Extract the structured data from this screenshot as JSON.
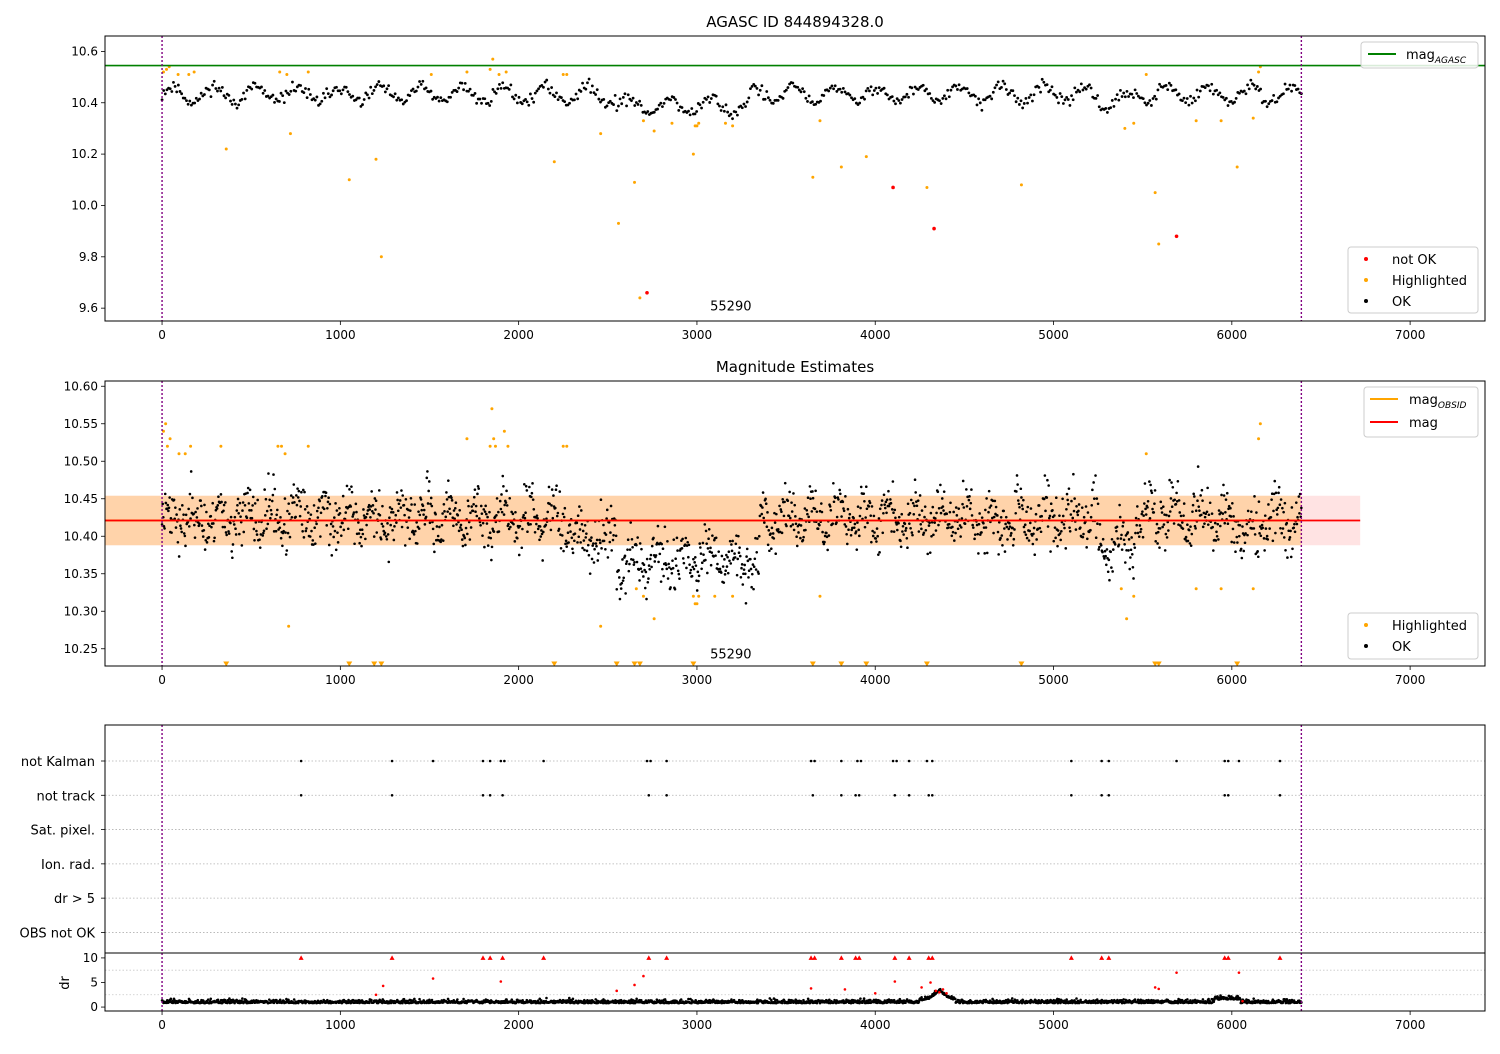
{
  "chart_data": [
    {
      "id": "agasc",
      "type": "scatter",
      "title": "AGASC ID 844894328.0",
      "xlim": [
        -320,
        7420
      ],
      "ylim": [
        9.55,
        10.66
      ],
      "xticks": [
        0,
        1000,
        2000,
        3000,
        4000,
        5000,
        6000,
        7000
      ],
      "yticks": [
        9.6,
        9.8,
        10.0,
        10.2,
        10.4,
        10.6
      ],
      "ytick_decimals": 1,
      "vlines": [
        0,
        6390
      ],
      "annotation": {
        "text": "55290",
        "x": 3190,
        "y": 9.61
      },
      "hlines": [
        {
          "name": "mag_agasc",
          "y": 10.545,
          "color": "#008000"
        }
      ],
      "ok_series": {
        "name": "OK",
        "color": "#000000",
        "n": 700,
        "x_range": [
          0,
          6390
        ],
        "seed": 11
      },
      "highlighted": {
        "name": "Highlighted",
        "color": "#FFA500",
        "points": [
          [
            8,
            10.52
          ],
          [
            25,
            10.53
          ],
          [
            40,
            10.54
          ],
          [
            90,
            10.51
          ],
          [
            150,
            10.51
          ],
          [
            180,
            10.52
          ],
          [
            360,
            10.22
          ],
          [
            660,
            10.52
          ],
          [
            700,
            10.51
          ],
          [
            720,
            10.28
          ],
          [
            820,
            10.52
          ],
          [
            1050,
            10.1
          ],
          [
            1200,
            10.18
          ],
          [
            1230,
            9.8
          ],
          [
            1510,
            10.51
          ],
          [
            1710,
            10.52
          ],
          [
            1840,
            10.53
          ],
          [
            1855,
            10.57
          ],
          [
            1890,
            10.51
          ],
          [
            1930,
            10.52
          ],
          [
            2200,
            10.17
          ],
          [
            2250,
            10.51
          ],
          [
            2270,
            10.51
          ],
          [
            2460,
            10.28
          ],
          [
            2560,
            9.93
          ],
          [
            2650,
            10.09
          ],
          [
            2680,
            9.64
          ],
          [
            2700,
            10.33
          ],
          [
            2760,
            10.29
          ],
          [
            2860,
            10.32
          ],
          [
            2980,
            10.2
          ],
          [
            2990,
            10.31
          ],
          [
            3000,
            10.31
          ],
          [
            3010,
            10.32
          ],
          [
            3160,
            10.32
          ],
          [
            3200,
            10.31
          ],
          [
            3650,
            10.11
          ],
          [
            3690,
            10.33
          ],
          [
            3810,
            10.15
          ],
          [
            3950,
            10.19
          ],
          [
            4290,
            10.07
          ],
          [
            4820,
            10.08
          ],
          [
            5400,
            10.3
          ],
          [
            5450,
            10.32
          ],
          [
            5520,
            10.51
          ],
          [
            5570,
            10.05
          ],
          [
            5590,
            9.85
          ],
          [
            5800,
            10.33
          ],
          [
            5940,
            10.33
          ],
          [
            6030,
            10.15
          ],
          [
            6120,
            10.34
          ],
          [
            6150,
            10.52
          ],
          [
            6160,
            10.54
          ]
        ]
      },
      "not_ok": {
        "name": "not OK",
        "color": "#FF0000",
        "points": [
          [
            2720,
            9.66
          ],
          [
            4100,
            10.07
          ],
          [
            4330,
            9.91
          ],
          [
            5690,
            9.88
          ]
        ]
      },
      "legend_top": [
        {
          "label": "mag",
          "sub": "AGASC",
          "color": "#008000"
        }
      ],
      "legend_bottom": [
        {
          "label": "not OK",
          "color": "#FF0000"
        },
        {
          "label": "Highlighted",
          "color": "#FFA500"
        },
        {
          "label": "OK",
          "color": "#000000"
        }
      ]
    },
    {
      "id": "estimates",
      "type": "scatter",
      "title": "Magnitude Estimates",
      "xlim": [
        -320,
        7420
      ],
      "ylim": [
        10.227,
        10.607
      ],
      "xticks": [
        0,
        1000,
        2000,
        3000,
        4000,
        5000,
        6000,
        7000
      ],
      "yticks": [
        10.25,
        10.3,
        10.35,
        10.4,
        10.45,
        10.5,
        10.55,
        10.6
      ],
      "ytick_decimals": 2,
      "vlines": [
        0,
        6390
      ],
      "annotation": {
        "text": "55290",
        "x": 3190,
        "y": 10.244
      },
      "band": {
        "x": [
          -320,
          6720
        ],
        "y": [
          10.388,
          10.454
        ],
        "color": "#FF9999"
      },
      "band_obs": {
        "x": [
          -320,
          6390
        ],
        "y": [
          10.388,
          10.454
        ],
        "color": "#FFA500"
      },
      "mag_line": {
        "name": "mag",
        "y": 10.421,
        "x": [
          -320,
          6720
        ],
        "color": "#FF0000"
      },
      "mag_obs_line": {
        "name": "mag_obsid",
        "y": 10.421,
        "x": [
          -320,
          6390
        ],
        "color": "#FFA500"
      },
      "ok_series": {
        "name": "OK",
        "color": "#000000",
        "n": 1800,
        "x_range": [
          0,
          6390
        ],
        "seed": 23
      },
      "highlighted": {
        "name": "Highlighted",
        "color": "#FFA500",
        "points": [
          [
            8,
            10.54
          ],
          [
            20,
            10.55
          ],
          [
            30,
            10.52
          ],
          [
            45,
            10.53
          ],
          [
            95,
            10.51
          ],
          [
            130,
            10.51
          ],
          [
            160,
            10.52
          ],
          [
            330,
            10.52
          ],
          [
            650,
            10.52
          ],
          [
            670,
            10.52
          ],
          [
            690,
            10.51
          ],
          [
            710,
            10.28
          ],
          [
            820,
            10.52
          ],
          [
            1710,
            10.53
          ],
          [
            1840,
            10.52
          ],
          [
            1850,
            10.57
          ],
          [
            1860,
            10.53
          ],
          [
            1870,
            10.52
          ],
          [
            1920,
            10.54
          ],
          [
            1940,
            10.52
          ],
          [
            2250,
            10.52
          ],
          [
            2270,
            10.52
          ],
          [
            2460,
            10.28
          ],
          [
            2660,
            10.33
          ],
          [
            2700,
            10.32
          ],
          [
            2760,
            10.29
          ],
          [
            2980,
            10.32
          ],
          [
            2990,
            10.31
          ],
          [
            3000,
            10.31
          ],
          [
            3010,
            10.32
          ],
          [
            3100,
            10.32
          ],
          [
            3200,
            10.32
          ],
          [
            3690,
            10.32
          ],
          [
            5380,
            10.33
          ],
          [
            5410,
            10.29
          ],
          [
            5450,
            10.32
          ],
          [
            5520,
            10.51
          ],
          [
            5800,
            10.33
          ],
          [
            5940,
            10.33
          ],
          [
            6120,
            10.33
          ],
          [
            6150,
            10.53
          ],
          [
            6160,
            10.55
          ]
        ]
      },
      "down_markers": {
        "y": 10.229,
        "color": "#FFA500",
        "x": [
          360,
          1050,
          1190,
          1230,
          2200,
          2550,
          2650,
          2680,
          2980,
          3650,
          3810,
          3950,
          4290,
          4820,
          5570,
          5590,
          6030
        ]
      },
      "legend_top": [
        {
          "label": "mag",
          "sub": "OBSID",
          "color": "#FFA500"
        },
        {
          "label": "mag",
          "sub": "",
          "color": "#FF0000"
        }
      ],
      "legend_bottom": [
        {
          "label": "Highlighted",
          "color": "#FFA500"
        },
        {
          "label": "OK",
          "color": "#000000"
        }
      ]
    },
    {
      "id": "flags",
      "type": "scatter",
      "xlim": [
        -320,
        7420
      ],
      "ylim": [
        -0.6,
        6.05
      ],
      "vlines": [
        0,
        6390
      ],
      "row_labels": [
        "OBS not OK",
        "dr > 5",
        "Ion. rad.",
        "Sat. pixel.",
        "not track",
        "not Kalman"
      ],
      "rows": {
        "4": [
          780,
          1290,
          1800,
          1840,
          1910,
          2730,
          2830,
          3650,
          3810,
          3890,
          3910,
          4110,
          4190,
          4300,
          4320,
          5100,
          5270,
          5310,
          5960,
          5980,
          6270
        ],
        "5": [
          780,
          1290,
          1520,
          1800,
          1840,
          1900,
          1920,
          2140,
          2720,
          2740,
          2830,
          3640,
          3660,
          3810,
          3900,
          3920,
          4100,
          4120,
          4190,
          4290,
          4320,
          5100,
          5270,
          5310,
          5690,
          5960,
          5980,
          6040,
          6270
        ]
      }
    },
    {
      "id": "dr",
      "type": "scatter",
      "ylabel": "dr",
      "xlim": [
        -320,
        7420
      ],
      "ylim": [
        -0.8,
        11.0
      ],
      "xticks": [
        0,
        1000,
        2000,
        3000,
        4000,
        5000,
        6000,
        7000
      ],
      "yticks": [
        0,
        5,
        10
      ],
      "ytick_decimals": 0,
      "vlines": [
        0,
        6390
      ],
      "ok_series": {
        "name": "dr",
        "color": "#000000",
        "n": 2200,
        "x_range": [
          0,
          6390
        ],
        "seed": 37
      },
      "red_points": [
        [
          1200,
          2.5
        ],
        [
          1240,
          4.3
        ],
        [
          1520,
          5.8
        ],
        [
          1900,
          5.2
        ],
        [
          2550,
          3.3
        ],
        [
          2650,
          4.5
        ],
        [
          2700,
          6.3
        ],
        [
          3640,
          3.8
        ],
        [
          3830,
          3.6
        ],
        [
          4000,
          2.8
        ],
        [
          4110,
          5.2
        ],
        [
          4260,
          4.0
        ],
        [
          4310,
          5.0
        ],
        [
          4340,
          3.3
        ],
        [
          4360,
          3.0
        ],
        [
          4380,
          3.6
        ],
        [
          4400,
          2.8
        ],
        [
          5570,
          4.0
        ],
        [
          5590,
          3.7
        ],
        [
          5690,
          7.0
        ],
        [
          6040,
          7.0
        ],
        [
          6060,
          1.2
        ]
      ],
      "red_triangles": [
        780,
        1290,
        1800,
        1840,
        1910,
        2140,
        2730,
        2830,
        3640,
        3660,
        3810,
        3890,
        3910,
        4110,
        4190,
        4300,
        4320,
        5100,
        5270,
        5310,
        5960,
        5980,
        6270
      ]
    }
  ]
}
